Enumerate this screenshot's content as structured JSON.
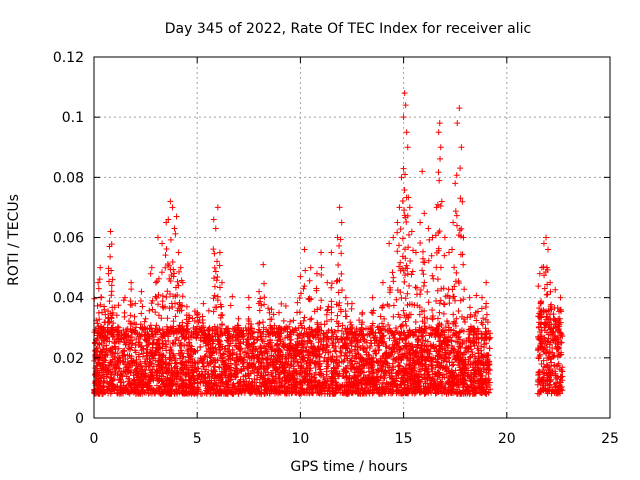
{
  "chart_data": {
    "type": "scatter",
    "title": "Day 345 of 2022, Rate Of TEC Index for receiver alic",
    "xlabel": "GPS time / hours",
    "ylabel": "ROTI / TECUs",
    "xlim": [
      0,
      25
    ],
    "ylim": [
      0,
      0.12
    ],
    "xticks": [
      "0",
      "5",
      "10",
      "15",
      "20",
      "25"
    ],
    "yticks": [
      "0",
      "0.02",
      "0.04",
      "0.06",
      "0.08",
      "0.1",
      "0.12"
    ],
    "grid": true,
    "marker": "plus",
    "color": "#ff0000",
    "series": [
      {
        "segments": [
          {
            "x_start": 0.0,
            "x_end": 19.2,
            "baseline": [
              0.008,
              0.025
            ]
          },
          {
            "x_start": 21.5,
            "x_end": 22.7,
            "baseline": [
              0.008,
              0.03
            ]
          }
        ],
        "points": [
          [
            0.2,
            0.045
          ],
          [
            0.3,
            0.05
          ],
          [
            0.35,
            0.04
          ],
          [
            0.5,
            0.036
          ],
          [
            0.7,
            0.048
          ],
          [
            0.75,
            0.057
          ],
          [
            0.8,
            0.062
          ],
          [
            0.9,
            0.046
          ],
          [
            1.2,
            0.03
          ],
          [
            1.5,
            0.04
          ],
          [
            1.8,
            0.045
          ],
          [
            2.0,
            0.038
          ],
          [
            2.3,
            0.042
          ],
          [
            2.5,
            0.033
          ],
          [
            2.8,
            0.05
          ],
          [
            3.0,
            0.045
          ],
          [
            3.1,
            0.06
          ],
          [
            3.3,
            0.058
          ],
          [
            3.5,
            0.065
          ],
          [
            3.6,
            0.066
          ],
          [
            3.7,
            0.072
          ],
          [
            3.8,
            0.07
          ],
          [
            3.9,
            0.063
          ],
          [
            4.0,
            0.067
          ],
          [
            4.1,
            0.055
          ],
          [
            4.2,
            0.05
          ],
          [
            4.3,
            0.045
          ],
          [
            4.5,
            0.037
          ],
          [
            5.0,
            0.035
          ],
          [
            5.3,
            0.038
          ],
          [
            5.6,
            0.03
          ],
          [
            5.8,
            0.066
          ],
          [
            5.9,
            0.063
          ],
          [
            6.0,
            0.07
          ],
          [
            6.1,
            0.055
          ],
          [
            6.2,
            0.045
          ],
          [
            6.5,
            0.028
          ],
          [
            7.0,
            0.033
          ],
          [
            7.5,
            0.04
          ],
          [
            8.0,
            0.042
          ],
          [
            8.2,
            0.051
          ],
          [
            8.5,
            0.035
          ],
          [
            9.0,
            0.03
          ],
          [
            9.5,
            0.032
          ],
          [
            10.0,
            0.047
          ],
          [
            10.2,
            0.056
          ],
          [
            10.5,
            0.05
          ],
          [
            10.8,
            0.048
          ],
          [
            11.0,
            0.055
          ],
          [
            11.3,
            0.045
          ],
          [
            11.5,
            0.055
          ],
          [
            11.8,
            0.06
          ],
          [
            11.9,
            0.07
          ],
          [
            12.0,
            0.065
          ],
          [
            12.2,
            0.04
          ],
          [
            12.5,
            0.038
          ],
          [
            13.0,
            0.035
          ],
          [
            13.5,
            0.04
          ],
          [
            14.0,
            0.045
          ],
          [
            14.3,
            0.058
          ],
          [
            14.5,
            0.06
          ],
          [
            14.7,
            0.065
          ],
          [
            14.8,
            0.07
          ],
          [
            14.9,
            0.08
          ],
          [
            15.0,
            0.1
          ],
          [
            15.05,
            0.108
          ],
          [
            15.1,
            0.104
          ],
          [
            15.15,
            0.095
          ],
          [
            15.2,
            0.09
          ],
          [
            15.3,
            0.07
          ],
          [
            15.4,
            0.062
          ],
          [
            15.6,
            0.055
          ],
          [
            15.8,
            0.065
          ],
          [
            15.9,
            0.082
          ],
          [
            16.0,
            0.068
          ],
          [
            16.2,
            0.063
          ],
          [
            16.4,
            0.06
          ],
          [
            16.6,
            0.07
          ],
          [
            16.7,
            0.095
          ],
          [
            16.75,
            0.098
          ],
          [
            16.8,
            0.09
          ],
          [
            17.0,
            0.06
          ],
          [
            17.2,
            0.055
          ],
          [
            17.4,
            0.065
          ],
          [
            17.5,
            0.078
          ],
          [
            17.6,
            0.098
          ],
          [
            17.7,
            0.103
          ],
          [
            17.8,
            0.09
          ],
          [
            17.9,
            0.06
          ],
          [
            18.2,
            0.04
          ],
          [
            18.5,
            0.035
          ],
          [
            18.8,
            0.04
          ],
          [
            19.0,
            0.045
          ],
          [
            21.6,
            0.048
          ],
          [
            21.7,
            0.05
          ],
          [
            21.8,
            0.058
          ],
          [
            21.9,
            0.06
          ],
          [
            22.0,
            0.056
          ],
          [
            22.1,
            0.045
          ],
          [
            22.3,
            0.033
          ],
          [
            22.6,
            0.04
          ]
        ]
      }
    ]
  }
}
